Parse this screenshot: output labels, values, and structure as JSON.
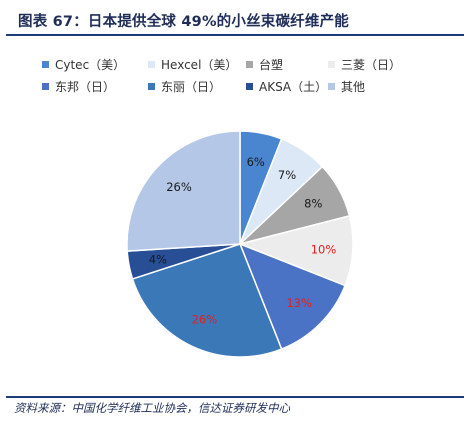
{
  "title": "图表 67：日本提供全球 49%的小丝束碳纤维产能",
  "source": "资料来源：中国化学纤维工业协会，信达证券研发中心",
  "colors": {
    "title_rule": "#1f3a75",
    "label_default": "#1a1a1a",
    "label_highlight": "#e02020"
  },
  "chart_data": {
    "type": "pie",
    "title": "",
    "legend_position": "top",
    "start_angle_deg": 0,
    "direction": "clockwise",
    "slices": [
      {
        "name": "Cytec（美）",
        "value": 6,
        "label": "6%",
        "color": "#4a86d0",
        "label_color": "#1a1a1a"
      },
      {
        "name": "Hexcel（美）",
        "value": 7,
        "label": "7%",
        "color": "#dce8f5",
        "label_color": "#1a1a1a"
      },
      {
        "name": "台塑",
        "value": 8,
        "label": "8%",
        "color": "#a6a6a6",
        "label_color": "#1a1a1a"
      },
      {
        "name": "三菱（日）",
        "value": 10,
        "label": "10%",
        "color": "#ececec",
        "label_color": "#e02020"
      },
      {
        "name": "东邦（日）",
        "value": 13,
        "label": "13%",
        "color": "#4a73c6",
        "label_color": "#e02020"
      },
      {
        "name": "东丽（日）",
        "value": 26,
        "label": "26%",
        "color": "#3a78b8",
        "label_color": "#e02020"
      },
      {
        "name": "AKSA（土）",
        "value": 4,
        "label": "4%",
        "color": "#284f96",
        "label_color": "#1a1a1a"
      },
      {
        "name": "其他",
        "value": 26,
        "label": "26%",
        "color": "#b4c7e7",
        "label_color": "#1a1a1a"
      }
    ]
  }
}
